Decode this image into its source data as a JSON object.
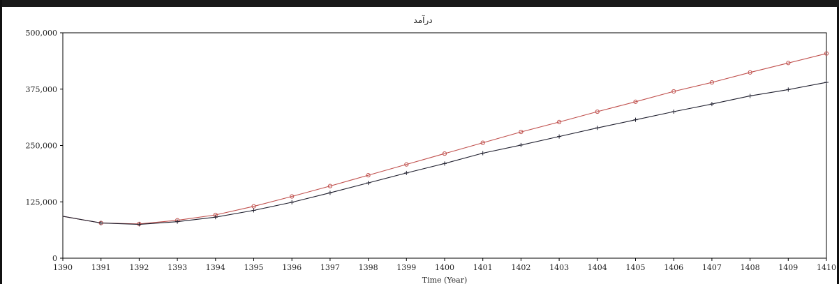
{
  "chart_data": {
    "type": "line",
    "title": "درآمد",
    "xlabel": "Time (Year)",
    "ylabel": "",
    "xlim": [
      1390,
      1410
    ],
    "ylim": [
      0,
      500000
    ],
    "x_ticks": [
      "1390",
      "1391",
      "1392",
      "1393",
      "1394",
      "1395",
      "1396",
      "1397",
      "1398",
      "1399",
      "1400",
      "1401",
      "1402",
      "1403",
      "1404",
      "1405",
      "1406",
      "1407",
      "1408",
      "1409",
      "1410"
    ],
    "y_ticks": [
      "0",
      "125,000",
      "250,000",
      "375,000",
      "500,000"
    ],
    "y_tick_values": [
      0,
      125000,
      250000,
      375000,
      500000
    ],
    "grid": false,
    "x": [
      1390,
      1391,
      1392,
      1393,
      1394,
      1395,
      1396,
      1397,
      1398,
      1399,
      1400,
      1401,
      1402,
      1403,
      1404,
      1405,
      1406,
      1407,
      1408,
      1409,
      1410
    ],
    "series": [
      {
        "color": "#c0504d",
        "marker": "circle",
        "values": [
          93000,
          78000,
          76000,
          84000,
          96000,
          115000,
          137000,
          160000,
          184000,
          208000,
          232000,
          256000,
          280000,
          302000,
          325000,
          347000,
          370000,
          390000,
          412000,
          433000,
          454000
        ]
      },
      {
        "color": "#1f1f2e",
        "marker": "plus",
        "values": [
          93000,
          78000,
          75000,
          81000,
          91000,
          106000,
          124000,
          145000,
          167000,
          189000,
          210000,
          233000,
          251000,
          270000,
          289000,
          307000,
          325000,
          342000,
          360000,
          374000,
          390000
        ]
      }
    ]
  }
}
